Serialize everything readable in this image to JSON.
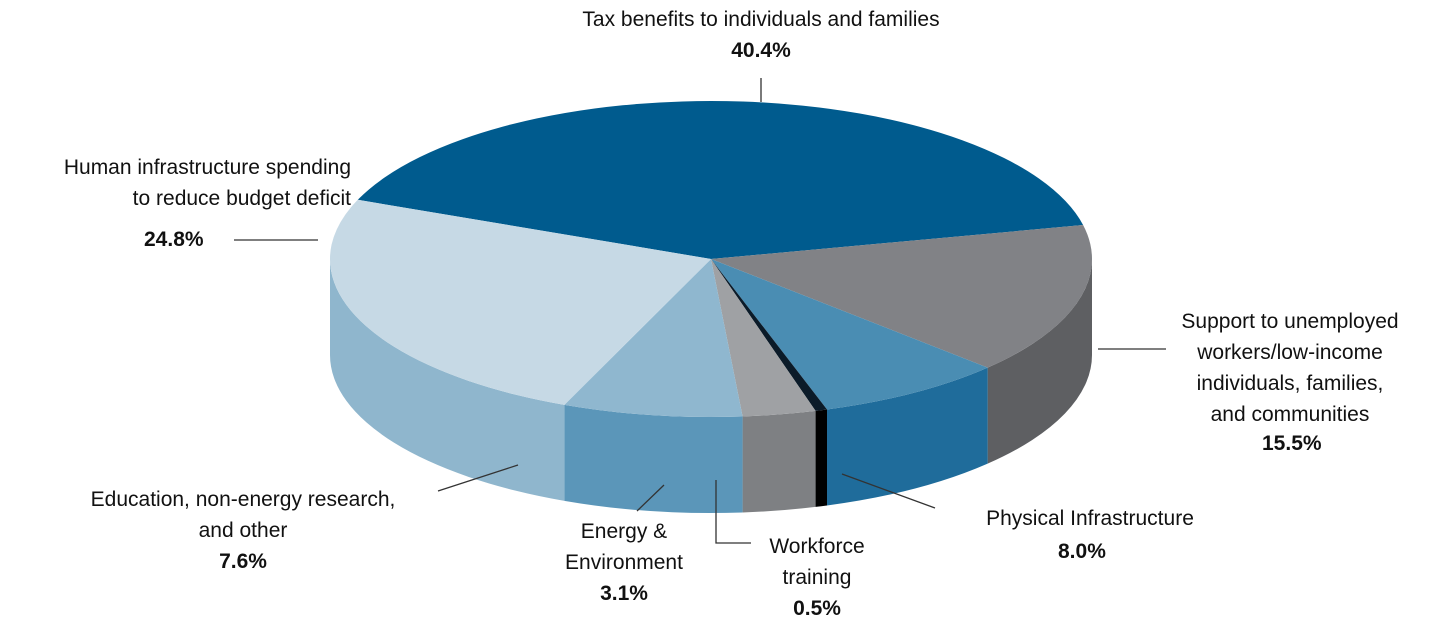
{
  "chart_data": {
    "type": "pie",
    "title": "",
    "start_angle_deg": 202,
    "direction": "clockwise",
    "slices": [
      {
        "key": "tax",
        "label": "Tax benefits to individuals and families",
        "value": 40.4,
        "value_label": "40.4%",
        "top_color": "#005B8E",
        "side_color": "#004C78"
      },
      {
        "key": "support",
        "label": "Support to unemployed\nworkers/low-income\nindividuals, families,\nand communities",
        "value": 15.5,
        "value_label": "15.5%",
        "top_color": "#818286",
        "side_color": "#5E5F62"
      },
      {
        "key": "physical",
        "label": "Physical Infrastructure",
        "value": 8.0,
        "value_label": "8.0%",
        "top_color": "#4A8DB3",
        "side_color": "#1F6C9B"
      },
      {
        "key": "workforce",
        "label": "Workforce\ntraining",
        "value": 0.5,
        "value_label": "0.5%",
        "top_color": "#0B1B29",
        "side_color": "#000000"
      },
      {
        "key": "energy",
        "label": "Energy &\nEnvironment",
        "value": 3.1,
        "value_label": "3.1%",
        "top_color": "#9FA1A4",
        "side_color": "#7E8083"
      },
      {
        "key": "education",
        "label": "Education, non-energy research,\nand other",
        "value": 7.6,
        "value_label": "7.6%",
        "top_color": "#8FB7CF",
        "side_color": "#5B96B9"
      },
      {
        "key": "human",
        "label": "Human infrastructure spending\nto reduce budget deficit",
        "value": 24.8,
        "value_label": "24.8%",
        "top_color": "#C6D9E5",
        "side_color": "#8FB6CD"
      }
    ]
  }
}
